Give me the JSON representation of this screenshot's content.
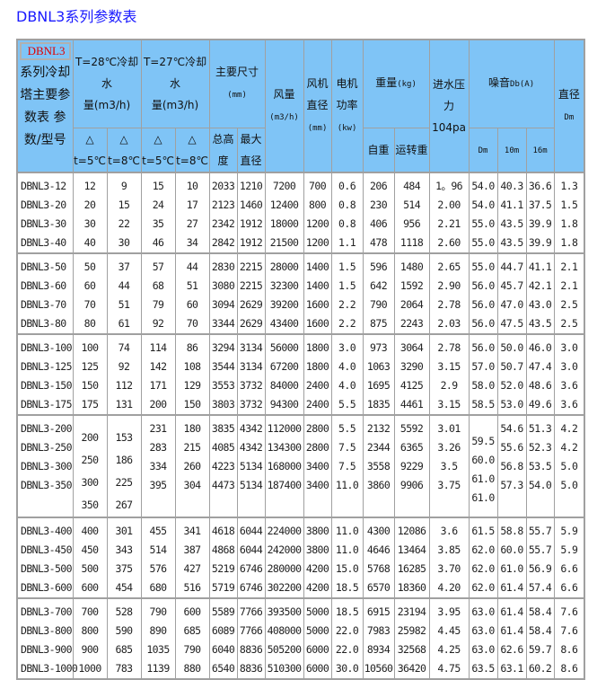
{
  "title": "DBNL3系列参数表",
  "header": {
    "model_tag": "DBNL3",
    "model_label": [
      "系列冷却",
      "塔主要参",
      "数表 参",
      "数/型号"
    ],
    "flow28": "T=28℃冷却水",
    "flow28_unit": "量(m3/h)",
    "flow27": "T=27℃冷却水",
    "flow27_unit": "量(m3/h)",
    "dims": "主要尺寸",
    "dims_unit": "(mm)",
    "air": "风量",
    "air_unit": "(m3/h)",
    "fan": "风机直径",
    "fan_unit": "(mm)",
    "motor": "电机功率",
    "motor_unit": "(kw)",
    "weight": "重量",
    "weight_unit": "(kg)",
    "pressure": "进水压",
    "pressure2": "力104pa",
    "noise": "噪音",
    "noise_unit": "Db(A)",
    "diam": "直径",
    "diam_unit": "Dm",
    "dt": "△",
    "t5": "t=5℃",
    "t8": "t=8℃",
    "height": "总高度",
    "maxdiam": "最大直径",
    "self_weight": "自重",
    "run_weight": "运转重",
    "dm": "Dm",
    "m10": "10m",
    "m16": "16m"
  },
  "groups": [
    [
      [
        "DBNL3-12",
        "12",
        "9",
        "15",
        "10",
        "2033",
        "1210",
        "7200",
        "700",
        "0.6",
        "206",
        "484",
        "1。96",
        "54.0",
        "40.3",
        "36.6",
        "1.3"
      ],
      [
        "DBNL3-20",
        "20",
        "15",
        "24",
        "17",
        "2123",
        "1460",
        "12400",
        "800",
        "0.8",
        "230",
        "514",
        "2.00",
        "54.0",
        "41.1",
        "37.5",
        "1.5"
      ],
      [
        "DBNL3-30",
        "30",
        "22",
        "35",
        "27",
        "2342",
        "1912",
        "18000",
        "1200",
        "0.8",
        "406",
        "956",
        "2.21",
        "55.0",
        "43.5",
        "39.9",
        "1.8"
      ],
      [
        "DBNL3-40",
        "40",
        "30",
        "46",
        "34",
        "2842",
        "1912",
        "21500",
        "1200",
        "1.1",
        "478",
        "1118",
        "2.60",
        "55.0",
        "43.5",
        "39.9",
        "1.8"
      ]
    ],
    [
      [
        "DBNL3-50",
        "50",
        "37",
        "57",
        "44",
        "2830",
        "2215",
        "28000",
        "1400",
        "1.5",
        "596",
        "1480",
        "2.65",
        "55.0",
        "44.7",
        "41.1",
        "2.1"
      ],
      [
        "DBNL3-60",
        "60",
        "44",
        "68",
        "51",
        "3080",
        "2215",
        "32300",
        "1400",
        "1.5",
        "642",
        "1592",
        "2.90",
        "56.0",
        "45.7",
        "42.1",
        "2.1"
      ],
      [
        "DBNL3-70",
        "70",
        "51",
        "79",
        "60",
        "3094",
        "2629",
        "39200",
        "1600",
        "2.2",
        "790",
        "2064",
        "2.78",
        "56.0",
        "47.0",
        "43.0",
        "2.5"
      ],
      [
        "DBNL3-80",
        "80",
        "61",
        "92",
        "70",
        "3344",
        "2629",
        "43400",
        "1600",
        "2.2",
        "875",
        "2243",
        "2.03",
        "56.0",
        "47.5",
        "43.5",
        "2.5"
      ]
    ],
    [
      [
        "DBNL3-100",
        "100",
        "74",
        "114",
        "86",
        "3294",
        "3134",
        "56000",
        "1800",
        "3.0",
        "973",
        "3064",
        "2.78",
        "56.0",
        "50.0",
        "46.0",
        "3.0"
      ],
      [
        "DBNL3-125",
        "125",
        "92",
        "142",
        "108",
        "3544",
        "3134",
        "67200",
        "1800",
        "4.0",
        "1063",
        "3290",
        "3.15",
        "57.0",
        "50.7",
        "47.4",
        "3.0"
      ],
      [
        "DBNL3-150",
        "150",
        "112",
        "171",
        "129",
        "3553",
        "3732",
        "84000",
        "2400",
        "4.0",
        "1695",
        "4125",
        "2.9",
        "58.0",
        "52.0",
        "48.6",
        "3.6"
      ],
      [
        "DBNL3-175",
        "175",
        "131",
        "200",
        "150",
        "3803",
        "3732",
        "94300",
        "2400",
        "5.5",
        "1835",
        "4461",
        "3.15",
        "58.5",
        "53.0",
        "49.6",
        "3.6"
      ]
    ],
    [
      [
        "DBNL3-200",
        "200",
        "153",
        "231",
        "180",
        "3835",
        "4342",
        "112000",
        "2800",
        "5.5",
        "2132",
        "5592",
        "3.01",
        "59.5",
        "54.6",
        "51.3",
        "4.2"
      ],
      [
        "DBNL3-250",
        "250",
        "186",
        "283",
        "215",
        "4085",
        "4342",
        "134300",
        "2800",
        "7.5",
        "2344",
        "6365",
        "3.26",
        "60.0",
        "55.6",
        "52.3",
        "4.2"
      ],
      [
        "DBNL3-300",
        "300",
        "225",
        "334",
        "260",
        "4223",
        "5134",
        "168000",
        "3400",
        "7.5",
        "3558",
        "9229",
        "3.5",
        "61.0",
        "56.8",
        "53.5",
        "5.0"
      ],
      [
        "DBNL3-350",
        "350",
        "267",
        "395",
        "304",
        "4473",
        "5134",
        "187400",
        "3400",
        "11.0",
        "3860",
        "9906",
        "3.75",
        "61.0",
        "57.3",
        "54.0",
        "5.0"
      ]
    ],
    [
      [
        "DBNL3-400",
        "400",
        "301",
        "455",
        "341",
        "4618",
        "6044",
        "224000",
        "3800",
        "11.0",
        "4300",
        "12086",
        "3.6",
        "61.5",
        "58.8",
        "55.7",
        "5.9"
      ],
      [
        "DBNL3-450",
        "450",
        "343",
        "514",
        "387",
        "4868",
        "6044",
        "242000",
        "3800",
        "11.0",
        "4646",
        "13464",
        "3.85",
        "62.0",
        "60.0",
        "55.7",
        "5.9"
      ],
      [
        "DBNL3-500",
        "500",
        "375",
        "576",
        "427",
        "5219",
        "6746",
        "280000",
        "4200",
        "15.0",
        "5768",
        "16285",
        "3.70",
        "62.0",
        "61.0",
        "56.9",
        "6.6"
      ],
      [
        "DBNL3-600",
        "600",
        "454",
        "680",
        "516",
        "5719",
        "6746",
        "302200",
        "4200",
        "18.5",
        "6570",
        "18360",
        "4.20",
        "62.0",
        "61.4",
        "57.4",
        "6.6"
      ]
    ],
    [
      [
        "DBNL3-700",
        "700",
        "528",
        "790",
        "600",
        "5589",
        "7766",
        "393500",
        "5000",
        "18.5",
        "6915",
        "23194",
        "3.95",
        "63.0",
        "61.4",
        "58.4",
        "7.6"
      ],
      [
        "DBNL3-800",
        "800",
        "590",
        "890",
        "685",
        "6089",
        "7766",
        "408000",
        "5000",
        "22.0",
        "7983",
        "25982",
        "4.45",
        "63.0",
        "61.4",
        "58.4",
        "7.6"
      ],
      [
        "DBNL3-900",
        "900",
        "685",
        "1035",
        "790",
        "6040",
        "8836",
        "505200",
        "6000",
        "22.0",
        "8934",
        "32568",
        "4.25",
        "63.0",
        "62.6",
        "59.7",
        "8.6"
      ],
      [
        "DBNL3-1000",
        "1000",
        "783",
        "1139",
        "880",
        "6540",
        "8836",
        "510300",
        "6000",
        "30.0",
        "10560",
        "36420",
        "4.75",
        "63.5",
        "63.1",
        "60.2",
        "8.6"
      ]
    ]
  ]
}
